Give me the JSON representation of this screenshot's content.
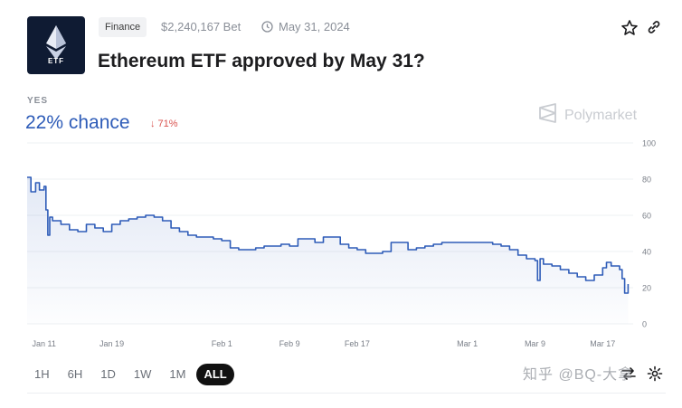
{
  "market": {
    "logo_text": "ETF",
    "category": "Finance",
    "bet_volume": "$2,240,167 Bet",
    "end_date": "May 31, 2024",
    "title": "Ethereum ETF approved by May 31?"
  },
  "outcome": {
    "label": "YES",
    "chance": "22% chance",
    "change": "↓ 71%"
  },
  "brand": {
    "name": "Polymarket"
  },
  "ranges": {
    "options": [
      "1H",
      "6H",
      "1D",
      "1W",
      "1M",
      "ALL"
    ],
    "selected": "ALL"
  },
  "watermark": "知乎 @BQ-大拿",
  "icons": {
    "logo": "ethereum-diamond-icon",
    "date": "clock-icon",
    "favorite": "star-icon",
    "share": "link-icon",
    "brand": "polymarket-logo-icon",
    "swap": "swap-arrows-icon",
    "settings": "gear-icon"
  },
  "colors": {
    "line": "#2e5cb8",
    "chance_text": "#2e5cb8",
    "change_down": "#d9534f",
    "logo_bg": "#0f1b33"
  },
  "chart_data": {
    "type": "line",
    "series": [
      {
        "values": [
          [
            "2024-01-09",
            81
          ],
          [
            "2024-01-09",
            73
          ],
          [
            "2024-01-10",
            78
          ],
          [
            "2024-01-10",
            74
          ],
          [
            "2024-01-11",
            76
          ],
          [
            "2024-01-11",
            63
          ],
          [
            "2024-01-11",
            49
          ],
          [
            "2024-01-11",
            59
          ],
          [
            "2024-01-12",
            57
          ],
          [
            "2024-01-13",
            55
          ],
          [
            "2024-01-14",
            52
          ],
          [
            "2024-01-15",
            51
          ],
          [
            "2024-01-16",
            55
          ],
          [
            "2024-01-17",
            53
          ],
          [
            "2024-01-18",
            51
          ],
          [
            "2024-01-19",
            55
          ],
          [
            "2024-01-20",
            57
          ],
          [
            "2024-01-21",
            58
          ],
          [
            "2024-01-22",
            59
          ],
          [
            "2024-01-23",
            60
          ],
          [
            "2024-01-24",
            59
          ],
          [
            "2024-01-25",
            57
          ],
          [
            "2024-01-26",
            53
          ],
          [
            "2024-01-27",
            51
          ],
          [
            "2024-01-28",
            49
          ],
          [
            "2024-01-29",
            48
          ],
          [
            "2024-01-30",
            48
          ],
          [
            "2024-01-31",
            47
          ],
          [
            "2024-02-01",
            46
          ],
          [
            "2024-02-02",
            42
          ],
          [
            "2024-02-03",
            41
          ],
          [
            "2024-02-04",
            41
          ],
          [
            "2024-02-05",
            42
          ],
          [
            "2024-02-06",
            43
          ],
          [
            "2024-02-07",
            43
          ],
          [
            "2024-02-08",
            44
          ],
          [
            "2024-02-09",
            43
          ],
          [
            "2024-02-10",
            47
          ],
          [
            "2024-02-11",
            47
          ],
          [
            "2024-02-12",
            45
          ],
          [
            "2024-02-13",
            48
          ],
          [
            "2024-02-14",
            48
          ],
          [
            "2024-02-15",
            44
          ],
          [
            "2024-02-16",
            42
          ],
          [
            "2024-02-17",
            41
          ],
          [
            "2024-02-18",
            39
          ],
          [
            "2024-02-19",
            39
          ],
          [
            "2024-02-20",
            40
          ],
          [
            "2024-02-21",
            45
          ],
          [
            "2024-02-22",
            45
          ],
          [
            "2024-02-23",
            41
          ],
          [
            "2024-02-24",
            42
          ],
          [
            "2024-02-25",
            43
          ],
          [
            "2024-02-26",
            44
          ],
          [
            "2024-02-27",
            45
          ],
          [
            "2024-02-28",
            45
          ],
          [
            "2024-02-29",
            45
          ],
          [
            "2024-03-01",
            45
          ],
          [
            "2024-03-02",
            45
          ],
          [
            "2024-03-03",
            45
          ],
          [
            "2024-03-04",
            44
          ],
          [
            "2024-03-05",
            43
          ],
          [
            "2024-03-06",
            41
          ],
          [
            "2024-03-07",
            38
          ],
          [
            "2024-03-08",
            36
          ],
          [
            "2024-03-09",
            35
          ],
          [
            "2024-03-09",
            24
          ],
          [
            "2024-03-09",
            36
          ],
          [
            "2024-03-10",
            33
          ],
          [
            "2024-03-11",
            32
          ],
          [
            "2024-03-12",
            30
          ],
          [
            "2024-03-13",
            28
          ],
          [
            "2024-03-14",
            26
          ],
          [
            "2024-03-15",
            24
          ],
          [
            "2024-03-16",
            27
          ],
          [
            "2024-03-17",
            31
          ],
          [
            "2024-03-17",
            34
          ],
          [
            "2024-03-18",
            32
          ],
          [
            "2024-03-19",
            30
          ],
          [
            "2024-03-19",
            25
          ],
          [
            "2024-03-19",
            17
          ],
          [
            "2024-03-20",
            22
          ]
        ]
      }
    ],
    "x_ticks": [
      "Jan 11",
      "Jan 19",
      "Feb 1",
      "Feb 9",
      "Feb 17",
      "Mar 1",
      "Mar 9",
      "Mar 17"
    ],
    "x_tick_dates": [
      "2024-01-11",
      "2024-01-19",
      "2024-02-01",
      "2024-02-09",
      "2024-02-17",
      "2024-03-01",
      "2024-03-09",
      "2024-03-17"
    ],
    "y_ticks": [
      0,
      20,
      40,
      60,
      80,
      100
    ],
    "xlim": [
      "2024-01-09",
      "2024-03-20"
    ],
    "ylim": [
      0,
      100
    ],
    "grid": true,
    "area_fill": true
  }
}
